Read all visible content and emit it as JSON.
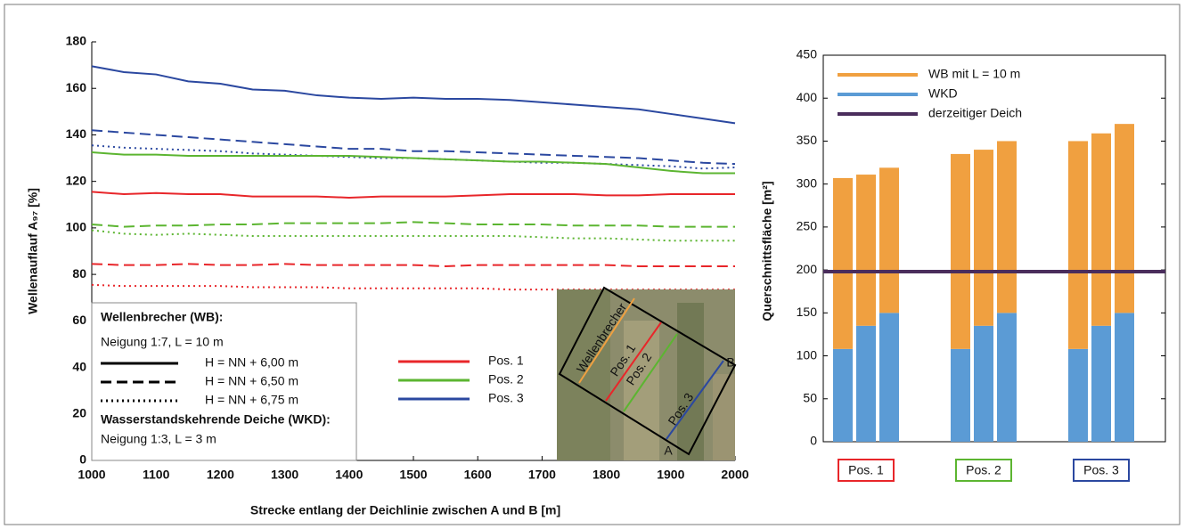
{
  "chart_data": [
    {
      "type": "line",
      "xlabel": "Strecke entlang der Deichlinie zwischen A und B [m]",
      "ylabel": "Wellenauflauf A₉₇ [%]",
      "x": [
        1000,
        1050,
        1100,
        1150,
        1200,
        1250,
        1300,
        1350,
        1400,
        1450,
        1500,
        1550,
        1600,
        1650,
        1700,
        1750,
        1800,
        1850,
        1900,
        1950,
        2000
      ],
      "xlim": [
        1000,
        2000
      ],
      "xticks": [
        1000,
        1100,
        1200,
        1300,
        1400,
        1500,
        1600,
        1700,
        1800,
        1900,
        2000
      ],
      "ylim": [
        0,
        180
      ],
      "yticks": [
        0,
        20,
        40,
        60,
        80,
        100,
        120,
        140,
        160,
        180
      ],
      "positions": [
        {
          "name": "Pos. 1",
          "color": "#e8262a"
        },
        {
          "name": "Pos. 2",
          "color": "#5cb531"
        },
        {
          "name": "Pos. 3",
          "color": "#2b48a0"
        }
      ],
      "styles": [
        {
          "label": "H = NN + 6,00 m",
          "dash": "solid"
        },
        {
          "label": "H = NN + 6,50 m",
          "dash": "dashed"
        },
        {
          "label": "H = NN + 6,75 m",
          "dash": "dotted"
        }
      ],
      "legend_heading": "Wellenbrecher (WB):",
      "legend_wb_note": "Neigung 1:7, L = 10 m",
      "legend_wkd_heading": "Wasserstandskehrende Deiche (WKD):",
      "legend_wkd_note": "Neigung 1:3, L = 3 m",
      "inset_labels": {
        "wb": "Wellenbrecher",
        "p1": "Pos. 1",
        "p2": "Pos. 2",
        "p3": "Pos. 3",
        "a": "A",
        "b": "B"
      },
      "series": [
        {
          "position": 2,
          "style": 0,
          "values": [
            169.5,
            167,
            166,
            163,
            162,
            159.5,
            159,
            157,
            156,
            155.5,
            156,
            155.5,
            155.5,
            155,
            154,
            153,
            152,
            151,
            149,
            147,
            145
          ]
        },
        {
          "position": 2,
          "style": 1,
          "values": [
            142,
            141,
            140,
            139,
            138,
            137,
            136,
            135,
            134,
            134,
            133,
            133,
            132.5,
            132,
            131.5,
            131,
            130.5,
            130,
            129,
            128,
            127.5
          ]
        },
        {
          "position": 2,
          "style": 2,
          "values": [
            135.5,
            134.5,
            134,
            133.5,
            133,
            132,
            131.5,
            131,
            130.5,
            130,
            130,
            129.5,
            129,
            128.5,
            128,
            128,
            127.5,
            127,
            126.5,
            125.5,
            126
          ]
        },
        {
          "position": 1,
          "style": 0,
          "values": [
            132.5,
            131.5,
            131.5,
            131,
            131,
            131,
            131,
            131,
            131,
            130.5,
            130,
            129.5,
            129,
            128.5,
            128.5,
            128,
            127.5,
            126,
            124.5,
            123.5,
            123.5
          ]
        },
        {
          "position": 1,
          "style": 1,
          "values": [
            101.5,
            100.5,
            101,
            101,
            101.5,
            101.5,
            102,
            102,
            102,
            102,
            102.5,
            102,
            101.5,
            101.5,
            101.5,
            101,
            101,
            101,
            100.5,
            100.5,
            100.5
          ]
        },
        {
          "position": 1,
          "style": 2,
          "values": [
            99,
            97.5,
            97,
            97.5,
            97,
            96.5,
            96.5,
            96.5,
            96.5,
            96.5,
            96.5,
            96.5,
            96.5,
            96.5,
            96,
            95.5,
            95.5,
            95,
            94.5,
            94.5,
            94.5
          ]
        },
        {
          "position": 0,
          "style": 0,
          "values": [
            115.5,
            114.5,
            115,
            114.5,
            114.5,
            113.5,
            113.5,
            113.5,
            113,
            113.5,
            113.5,
            113.5,
            114,
            114.5,
            114.5,
            114.5,
            114,
            114,
            114.5,
            114.5,
            114.5
          ]
        },
        {
          "position": 0,
          "style": 1,
          "values": [
            84.5,
            84,
            84,
            84.5,
            84,
            84,
            84.5,
            84,
            84,
            84,
            84,
            83.5,
            84,
            84,
            84,
            84,
            84,
            83.5,
            83.5,
            83.5,
            83.5
          ]
        },
        {
          "position": 0,
          "style": 2,
          "values": [
            75.5,
            75,
            75,
            75,
            75,
            74.5,
            74.5,
            74.5,
            74,
            74,
            74,
            74,
            74,
            73.5,
            73.5,
            73.5,
            73.5,
            73.5,
            73.5,
            73.5,
            73.5
          ]
        }
      ]
    },
    {
      "type": "stacked-bar",
      "ylabel": "Querschnittsfläche [m²]",
      "ylim": [
        0,
        450
      ],
      "yticks": [
        0,
        50,
        100,
        150,
        200,
        250,
        300,
        350,
        400,
        450
      ],
      "groups": [
        {
          "name": "Pos. 1",
          "color": "#e8262a"
        },
        {
          "name": "Pos. 2",
          "color": "#5cb531"
        },
        {
          "name": "Pos. 3",
          "color": "#2b48a0"
        }
      ],
      "series": [
        {
          "name": "WKD",
          "color": "#5b9bd5",
          "values": [
            108,
            135,
            150,
            108,
            135,
            150,
            108,
            135,
            150
          ]
        },
        {
          "name": "WB mit L = 10 m",
          "color": "#f0a040",
          "values": [
            199,
            176,
            169,
            227,
            205,
            200,
            242,
            224,
            220
          ]
        }
      ],
      "reference": {
        "name": "derzeitiger Deich",
        "value": 198,
        "color": "#4a2d5c"
      }
    }
  ]
}
